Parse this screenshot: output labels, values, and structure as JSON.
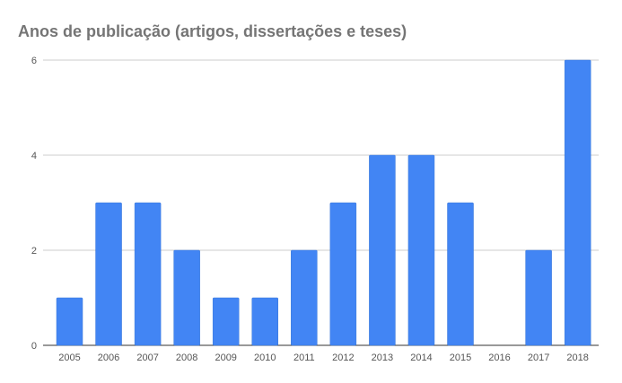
{
  "chart_data": {
    "type": "bar",
    "title": "Anos de publicação (artigos, dissertações e teses)",
    "categories": [
      "2005",
      "2006",
      "2007",
      "2008",
      "2009",
      "2010",
      "2011",
      "2012",
      "2013",
      "2014",
      "2015",
      "2016",
      "2017",
      "2018"
    ],
    "values": [
      1,
      3,
      3,
      2,
      1,
      1,
      2,
      3,
      4,
      4,
      3,
      0,
      2,
      6
    ],
    "xlabel": "",
    "ylabel": "",
    "ylim": [
      0,
      6
    ],
    "yticks": [
      0,
      2,
      4,
      6
    ],
    "grid": true,
    "bar_color": "#4285f4"
  }
}
